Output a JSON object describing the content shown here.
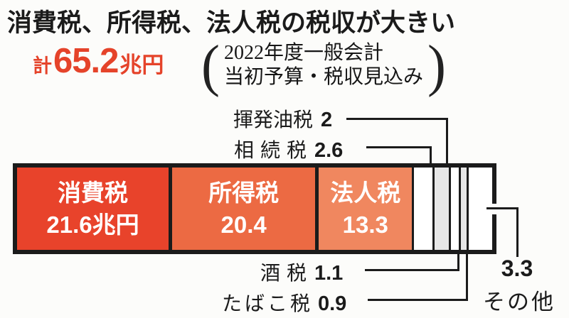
{
  "title": "消費税、所得税、法人税の税収が大きい",
  "total": {
    "prefix": "計",
    "value": "65.2",
    "unit": "兆円",
    "color": "#e5432a"
  },
  "note": {
    "open_paren": "(",
    "line1": "2022年度一般会計",
    "line2": "当初予算・税収見込み",
    "close_paren": ")"
  },
  "annotations": {
    "gasoline_tax": {
      "label": "揮発油税",
      "value": "2"
    },
    "inheritance_tax": {
      "label": "相続税",
      "value": "2.6"
    },
    "liquor_tax": {
      "label": "酒税",
      "value": "1.1"
    },
    "tobacco_tax": {
      "label": "たばこ税",
      "value": "0.9"
    },
    "others": {
      "label": "その他",
      "value": "3.3"
    }
  },
  "chart_data": {
    "type": "bar",
    "subtype": "horizontal_stacked_single_bar",
    "title": "消費税、所得税、法人税の税収が大きい",
    "note": "2022年度一般会計 当初予算・税収見込み",
    "unit": "兆円",
    "total": 65.2,
    "total_label": "計65.2兆円",
    "bar_border_color": "#1b1b1b",
    "leader_line_color": "#1b1b1b",
    "segments": [
      {
        "name": "消費税",
        "value": 21.6,
        "color": "#e8432b",
        "text_lines": [
          "消費税",
          "21.6兆円"
        ]
      },
      {
        "name": "所得税",
        "value": 20.4,
        "color": "#ec6a43",
        "text_lines": [
          "所得税",
          "20.4"
        ]
      },
      {
        "name": "法人税",
        "value": 13.3,
        "color": "#f0875f",
        "text_lines": [
          "法人税",
          "13.3"
        ]
      },
      {
        "name": "相続税",
        "value": 2.6,
        "color": "#ffffff",
        "text_lines": []
      },
      {
        "name": "揮発油税",
        "value": 2,
        "color": "#e7e7e7",
        "text_lines": []
      },
      {
        "name": "酒税",
        "value": 1.1,
        "color": "#ffffff",
        "text_lines": []
      },
      {
        "name": "たばこ税",
        "value": 0.9,
        "color": "#e7e7e7",
        "text_lines": []
      },
      {
        "name": "その他",
        "value": 3.3,
        "color": "#ffffff",
        "text_lines": []
      }
    ]
  }
}
